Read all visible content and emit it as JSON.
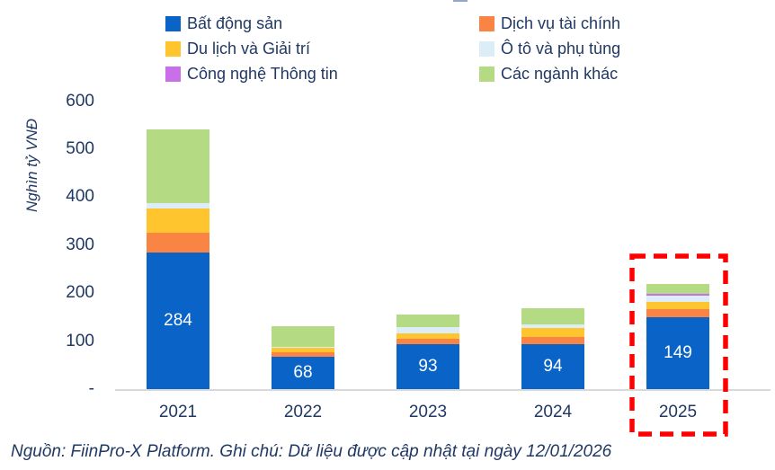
{
  "y_axis": {
    "title": "Nghìn tỷ VNĐ",
    "ticks": [
      {
        "label": "600",
        "value": 600
      },
      {
        "label": "500",
        "value": 500
      },
      {
        "label": "400",
        "value": 400
      },
      {
        "label": "300",
        "value": 300
      },
      {
        "label": "200",
        "value": 200
      },
      {
        "label": "100",
        "value": 100
      },
      {
        "label": "-",
        "value": 0
      }
    ]
  },
  "legend": {
    "items": [
      {
        "label": "Bất động sản",
        "color": "#0a64c8"
      },
      {
        "label": "Dịch vụ tài chính",
        "color": "#f98443"
      },
      {
        "label": "Du lịch và Giải trí",
        "color": "#ffc52f"
      },
      {
        "label": "Ô tô và phụ tùng",
        "color": "#dcedf8"
      },
      {
        "label": "Công nghệ Thông tin",
        "color": "#c96fe8"
      },
      {
        "label": "Các ngành khác",
        "color": "#b5da84"
      }
    ]
  },
  "chart_data": {
    "type": "bar",
    "stacked": true,
    "categories": [
      "2021",
      "2022",
      "2023",
      "2024",
      "2025"
    ],
    "series": [
      {
        "name": "Bất động sản",
        "color": "#0a64c8",
        "values": [
          284,
          68,
          93,
          94,
          149
        ]
      },
      {
        "name": "Dịch vụ tài chính",
        "color": "#f98443",
        "values": [
          41,
          9,
          11,
          15,
          18
        ]
      },
      {
        "name": "Du lịch và Giải trí",
        "color": "#ffc52f",
        "values": [
          52,
          9,
          13,
          19,
          15
        ]
      },
      {
        "name": "Ô tô và phụ tùng",
        "color": "#dcedf8",
        "values": [
          11,
          2,
          13,
          6,
          12
        ]
      },
      {
        "name": "Công nghệ Thông tin",
        "color": "#c96fe8",
        "values": [
          0,
          0,
          0,
          0,
          5
        ]
      },
      {
        "name": "Các ngành khác",
        "color": "#b5da84",
        "values": [
          154,
          44,
          25,
          35,
          20
        ]
      }
    ],
    "bar_labels": [
      "284",
      "68",
      "93",
      "94",
      "149"
    ],
    "ylabel": "Nghìn tỷ VNĐ",
    "ylim": [
      0,
      600
    ],
    "grid": false,
    "legend_position": "top",
    "highlight": {
      "category": "2025",
      "style": "red-dashed-box",
      "color": "#fe0000"
    }
  },
  "footer": {
    "text": "Nguồn: FiinPro-X Platform. Ghi chú: Dữ liệu được cập nhật tại ngày 12/01/2026"
  },
  "colors": {
    "text_navy": "#203864",
    "axis_gray": "#d9d9d9",
    "highlight_red": "#fe0000"
  }
}
